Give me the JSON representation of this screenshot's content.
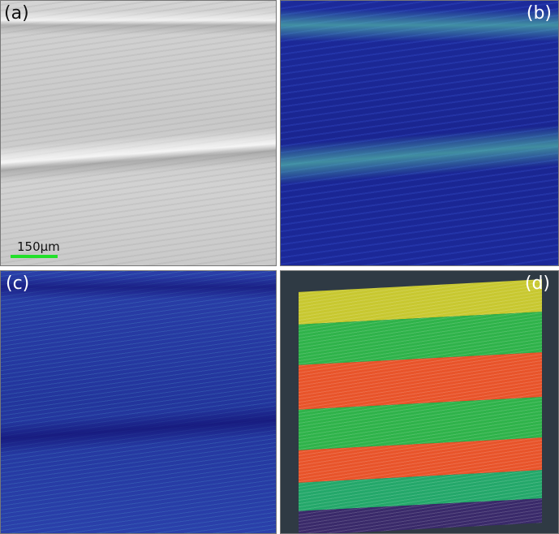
{
  "panels": [
    {
      "label": "(a)",
      "type": "SEM micrograph",
      "scale_bar": "150μm",
      "scale_bar_color": "#22e02a"
    },
    {
      "label": "(b)"
    },
    {
      "label": "(c)"
    },
    {
      "label": "(d)"
    }
  ],
  "colors": {
    "d_background": "#2f3a44",
    "d_bands": [
      "#c8c830",
      "#2fb34a",
      "#e8542a",
      "#2fb34a",
      "#e8542a",
      "#24a86a",
      "#3a2a6a"
    ]
  }
}
